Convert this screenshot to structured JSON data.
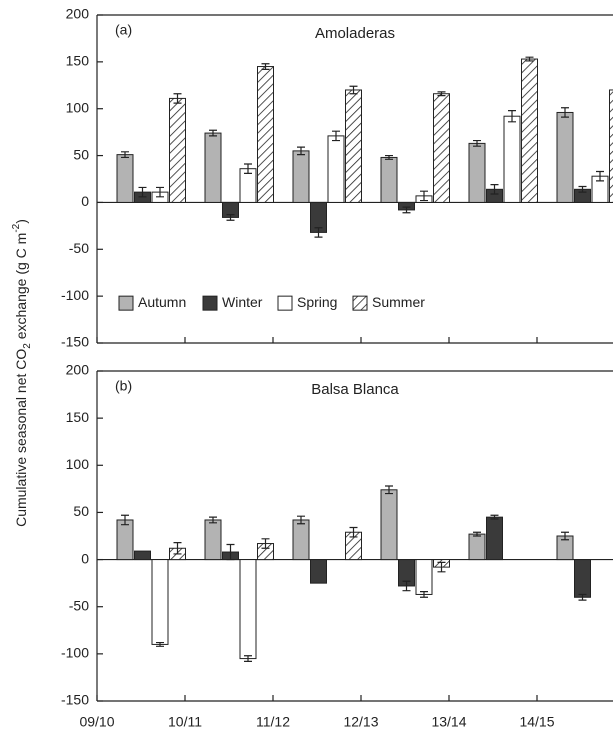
{
  "y_label": {
    "text": "Cumulative seasonal net CO",
    "sub": "2",
    "text2": " exchange (g C m",
    "sup": "-2",
    "text3": ")"
  },
  "chart_data": [
    {
      "type": "bar",
      "panel_label": "(a)",
      "title": "Amoladeras",
      "legend": true,
      "categories": [
        "09/10",
        "10/11",
        "11/12",
        "12/13",
        "13/14",
        "14/15"
      ],
      "ylim": [
        -150,
        200
      ],
      "yticks": [
        -150,
        -100,
        -50,
        0,
        50,
        100,
        150,
        200
      ],
      "series": [
        {
          "name": "Autumn",
          "color": "#b3b3b3",
          "values": [
            51,
            74,
            55,
            48,
            63,
            96
          ],
          "errors": [
            3,
            3,
            4,
            2,
            3,
            5
          ]
        },
        {
          "name": "Winter",
          "color": "#3a3a3a",
          "values": [
            11,
            -16,
            -32,
            -8,
            14,
            14
          ],
          "errors": [
            5,
            3,
            5,
            3,
            5,
            3
          ]
        },
        {
          "name": "Spring",
          "color": "#ffffff",
          "values": [
            11,
            36,
            71,
            7,
            92,
            28
          ],
          "errors": [
            5,
            5,
            5,
            5,
            6,
            5
          ]
        },
        {
          "name": "Summer",
          "color": "#ffffff",
          "hatch": true,
          "values": [
            111,
            145,
            120,
            116,
            153,
            120
          ],
          "errors": [
            5,
            3,
            4,
            2,
            2,
            2
          ]
        }
      ]
    },
    {
      "type": "bar",
      "panel_label": "(b)",
      "title": "Balsa Blanca",
      "legend": false,
      "categories": [
        "09/10",
        "10/11",
        "11/12",
        "12/13",
        "13/14",
        "14/15"
      ],
      "ylim": [
        -150,
        200
      ],
      "yticks": [
        -150,
        -100,
        -50,
        0,
        50,
        100,
        150,
        200
      ],
      "series": [
        {
          "color": "#b3b3b3",
          "values": [
            42,
            42,
            42,
            74,
            27,
            25
          ],
          "errors": [
            5,
            3,
            4,
            4,
            2,
            4
          ]
        },
        {
          "color": "#3a3a3a",
          "values": [
            9,
            8,
            -25,
            -28,
            45,
            -40
          ],
          "errors": [
            null,
            8,
            null,
            5,
            2,
            3
          ]
        },
        {
          "color": "#ffffff",
          "values": [
            -90,
            -105,
            null,
            -37,
            null,
            null
          ],
          "errors": [
            2,
            3,
            null,
            3,
            null,
            null
          ]
        },
        {
          "color": "#ffffff",
          "hatch": true,
          "values": [
            12,
            17,
            29,
            -8,
            null,
            null
          ],
          "errors": [
            6,
            5,
            5,
            5,
            null,
            null
          ]
        }
      ]
    }
  ]
}
